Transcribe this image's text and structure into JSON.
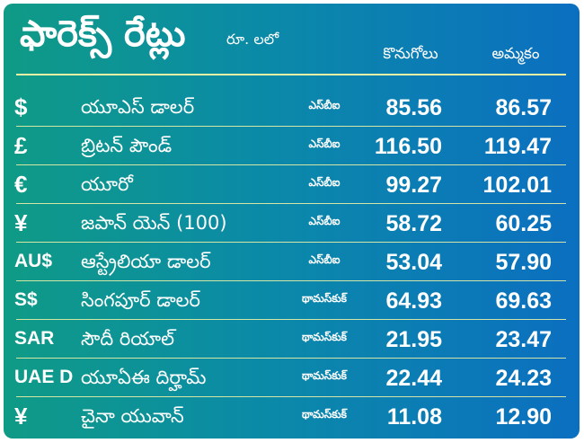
{
  "header": {
    "title": "ఫారెక్స్ రేట్లు",
    "unit": "రూ. లలో",
    "buy_label": "కొనుగోలు",
    "sell_label": "అమ్మకం"
  },
  "rows": [
    {
      "symbol": "$",
      "name": "యూఎస్ డాలర్",
      "source": "ఎస్‌బీఐ",
      "buy": "85.56",
      "sell": "86.57"
    },
    {
      "symbol": "£",
      "name": "బ్రిటన్ పౌండ్",
      "source": "ఎస్‌బీఐ",
      "buy": "116.50",
      "sell": "119.47"
    },
    {
      "symbol": "€",
      "name": "యూరో",
      "source": "ఎస్‌బీఐ",
      "buy": "99.27",
      "sell": "102.01"
    },
    {
      "symbol": "¥",
      "name": "జపాన్ యెన్ (100)",
      "source": "ఎస్‌బీఐ",
      "buy": "58.72",
      "sell": "60.25"
    },
    {
      "symbol": "AU$",
      "name": "ఆస్ట్రేలియా డాలర్",
      "source": "ఎస్‌బీఐ",
      "buy": "53.04",
      "sell": "57.90"
    },
    {
      "symbol": "S$",
      "name": "సింగపూర్ డాలర్",
      "source": "థామస్‌కుక్",
      "buy": "64.93",
      "sell": "69.63"
    },
    {
      "symbol": "SAR",
      "name": "సౌదీ రియాల్",
      "source": "థామస్‌కుక్",
      "buy": "21.95",
      "sell": "23.47"
    },
    {
      "symbol": "UAE D",
      "name": "యూఏఈ దిర్హామ్",
      "source": "థామస్‌కుక్",
      "buy": "22.44",
      "sell": "24.23"
    },
    {
      "symbol": "¥",
      "name": "చైనా యువాన్",
      "source": "థామస్‌కుక్",
      "buy": "11.08",
      "sell": "12.90"
    }
  ]
}
